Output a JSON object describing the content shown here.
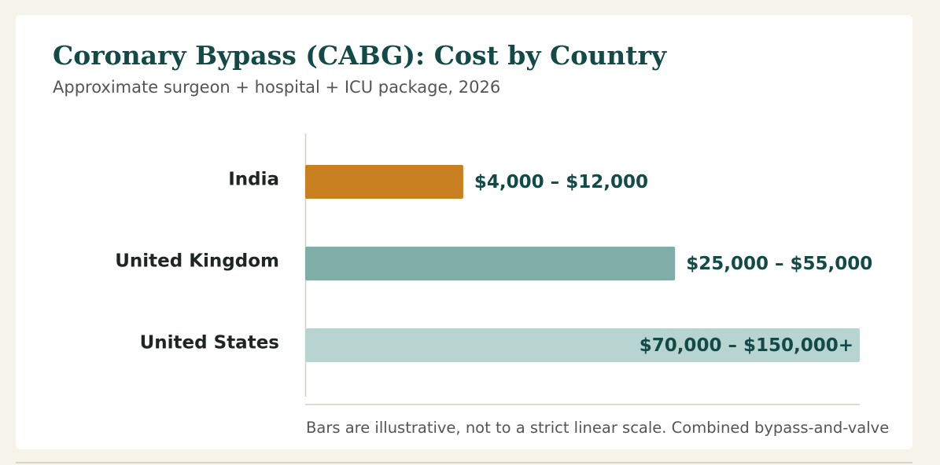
{
  "header": {
    "title": "Coronary Bypass (CABG): Cost by Country",
    "subtitle": "Approximate surgeon + hospital + ICU package, 2026"
  },
  "footnote": "Bars are illustrative, not to a strict linear scale. Combined bypass-and-valve",
  "chart_data": {
    "type": "bar",
    "orientation": "horizontal",
    "title": "Coronary Bypass (CABG): Cost by Country",
    "subtitle": "Approximate surgeon + hospital + ICU package, 2026",
    "categories": [
      "India",
      "United Kingdom",
      "United States"
    ],
    "value_labels": [
      "$4,000 – $12,000",
      "$25,000 – $55,000",
      "$70,000 – $150,000+"
    ],
    "ranges_usd": [
      [
        4000,
        12000
      ],
      [
        25000,
        55000
      ],
      [
        70000,
        150000
      ]
    ],
    "relative_bar_length": [
      0.285,
      0.667,
      1.0
    ],
    "colors": [
      "#c98020",
      "#7faea9",
      "#b8d4d0"
    ],
    "value_label_inside": [
      false,
      false,
      true
    ],
    "grid": false
  }
}
